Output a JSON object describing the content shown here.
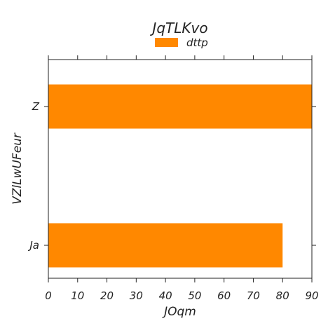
{
  "chart_data": {
    "type": "bar",
    "orientation": "horizontal",
    "title": "JqTLKvo",
    "xlabel": "JOqm",
    "ylabel": "VZlLwUFeur",
    "categories": [
      "Ja",
      "Z"
    ],
    "series": [
      {
        "name": "dttp",
        "values": [
          80,
          90
        ]
      }
    ],
    "xlim": [
      0,
      90
    ],
    "xticks": [
      0,
      10,
      20,
      30,
      40,
      50,
      60,
      70,
      80,
      90
    ],
    "grid": false,
    "legend_position": "top-center",
    "bar_color": "#ff8800"
  }
}
